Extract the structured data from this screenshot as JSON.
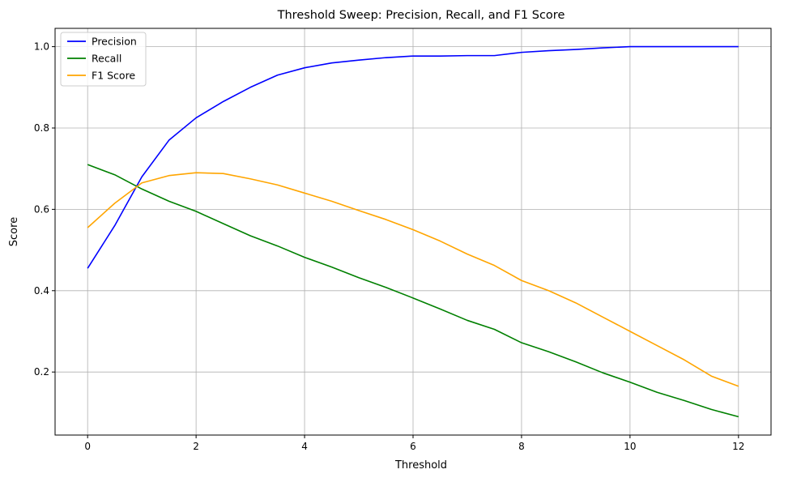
{
  "chart_data": {
    "type": "line",
    "title": "Threshold Sweep: Precision, Recall, and F1 Score",
    "xlabel": "Threshold",
    "ylabel": "Score",
    "xlim": [
      -0.6,
      12.6
    ],
    "ylim": [
      0.045,
      1.045
    ],
    "xticks": [
      0,
      2,
      4,
      6,
      8,
      10,
      12
    ],
    "yticks": [
      0.2,
      0.4,
      0.6,
      0.8,
      1.0
    ],
    "xtick_labels": [
      "0",
      "2",
      "4",
      "6",
      "8",
      "10",
      "12"
    ],
    "ytick_labels": [
      "0.2",
      "0.4",
      "0.6",
      "0.8",
      "1.0"
    ],
    "grid": true,
    "legend_position": "top-left",
    "x": [
      0,
      0.5,
      1,
      1.5,
      2,
      2.5,
      3,
      3.5,
      4,
      4.5,
      5,
      5.5,
      6,
      6.5,
      7,
      7.5,
      8,
      8.5,
      9,
      9.5,
      10,
      10.5,
      11,
      11.5,
      12
    ],
    "series": [
      {
        "name": "Precision",
        "color": "#0000ff",
        "values": [
          0.455,
          0.56,
          0.68,
          0.77,
          0.825,
          0.865,
          0.9,
          0.93,
          0.948,
          0.96,
          0.967,
          0.973,
          0.977,
          0.977,
          0.978,
          0.978,
          0.986,
          0.99,
          0.993,
          0.997,
          1.0,
          1.0,
          1.0,
          1.0,
          1.0
        ]
      },
      {
        "name": "Recall",
        "color": "#008000",
        "values": [
          0.71,
          0.685,
          0.65,
          0.62,
          0.595,
          0.565,
          0.535,
          0.51,
          0.482,
          0.458,
          0.432,
          0.408,
          0.382,
          0.355,
          0.327,
          0.305,
          0.272,
          0.25,
          0.225,
          0.198,
          0.175,
          0.15,
          0.13,
          0.108,
          0.09
        ]
      },
      {
        "name": "F1 Score",
        "color": "#ffa500",
        "values": [
          0.555,
          0.615,
          0.665,
          0.683,
          0.69,
          0.688,
          0.675,
          0.66,
          0.64,
          0.62,
          0.597,
          0.575,
          0.55,
          0.522,
          0.49,
          0.462,
          0.425,
          0.4,
          0.37,
          0.335,
          0.3,
          0.265,
          0.23,
          0.19,
          0.165
        ]
      }
    ]
  }
}
